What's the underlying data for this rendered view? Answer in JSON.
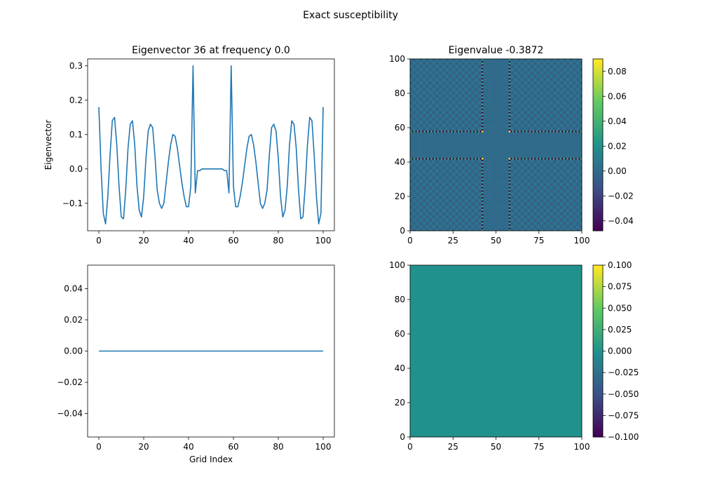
{
  "figure": {
    "suptitle": "Exact susceptibility"
  },
  "colors": {
    "line": "#1f77b4"
  },
  "chart_data": [
    {
      "type": "line",
      "title": "Eigenvector 36 at frequency 0.0",
      "xlabel": "",
      "ylabel": "Eigenvector",
      "xlim": [
        -5,
        105
      ],
      "ylim": [
        -0.18,
        0.32
      ],
      "xticks": [
        0,
        20,
        40,
        60,
        80,
        100
      ],
      "xtick_labels": [
        "0",
        "20",
        "40",
        "60",
        "80",
        "100"
      ],
      "yticks": [
        -0.1,
        0.0,
        0.1,
        0.2,
        0.3
      ],
      "ytick_labels": [
        "−0.1",
        "0.0",
        "0.1",
        "0.2",
        "0.3"
      ],
      "series": [
        {
          "x": [
            0,
            1,
            2,
            3,
            4,
            5,
            6,
            7,
            8,
            9,
            10,
            11,
            12,
            13,
            14,
            15,
            16,
            17,
            18,
            19,
            20,
            21,
            22,
            23,
            24,
            25,
            26,
            27,
            28,
            29,
            30,
            31,
            32,
            33,
            34,
            35,
            36,
            37,
            38,
            39,
            40,
            41,
            42,
            43,
            44,
            45,
            46,
            47,
            48,
            49,
            50,
            51,
            52,
            53,
            54,
            55,
            56,
            57,
            58,
            59,
            60,
            61,
            62,
            63,
            64,
            65,
            66,
            67,
            68,
            69,
            70,
            71,
            72,
            73,
            74,
            75,
            76,
            77,
            78,
            79,
            80,
            81,
            82,
            83,
            84,
            85,
            86,
            87,
            88,
            89,
            90,
            91,
            92,
            93,
            94,
            95,
            96,
            97,
            98,
            99,
            100
          ],
          "y": [
            0.18,
            0.0,
            -0.13,
            -0.16,
            -0.08,
            0.04,
            0.14,
            0.15,
            0.07,
            -0.05,
            -0.14,
            -0.145,
            -0.06,
            0.06,
            0.13,
            0.14,
            0.07,
            -0.05,
            -0.12,
            -0.14,
            -0.08,
            0.03,
            0.11,
            0.13,
            0.12,
            0.04,
            -0.06,
            -0.1,
            -0.115,
            -0.1,
            -0.04,
            0.02,
            0.07,
            0.1,
            0.095,
            0.06,
            0.01,
            -0.04,
            -0.08,
            -0.11,
            -0.11,
            -0.05,
            0.3,
            -0.07,
            -0.005,
            -0.005,
            0.0,
            0.0,
            0.0,
            0.0,
            0.0,
            0.0,
            0.0,
            0.0,
            0.0,
            0.0,
            -0.005,
            -0.005,
            -0.07,
            0.3,
            -0.05,
            -0.11,
            -0.11,
            -0.08,
            -0.04,
            0.01,
            0.06,
            0.095,
            0.1,
            0.07,
            0.02,
            -0.04,
            -0.1,
            -0.115,
            -0.1,
            -0.06,
            0.04,
            0.12,
            0.13,
            0.11,
            0.03,
            -0.08,
            -0.14,
            -0.12,
            -0.05,
            0.07,
            0.14,
            0.13,
            0.06,
            -0.06,
            -0.145,
            -0.14,
            -0.05,
            0.07,
            0.15,
            0.14,
            0.04,
            -0.08,
            -0.16,
            -0.13,
            0.18
          ]
        }
      ]
    },
    {
      "type": "heatmap",
      "title": "Eigenvalue -0.3872",
      "xlim": [
        0,
        100
      ],
      "ylim": [
        0,
        100
      ],
      "xticks": [
        0,
        25,
        50,
        75,
        100
      ],
      "xtick_labels": [
        "0",
        "25",
        "50",
        "75",
        "100"
      ],
      "yticks": [
        0,
        20,
        40,
        60,
        80,
        100
      ],
      "ytick_labels": [
        "0",
        "20",
        "40",
        "60",
        "80",
        "100"
      ],
      "colorbar": {
        "range": [
          -0.048,
          0.09
        ],
        "ticks": [
          -0.04,
          -0.02,
          0.0,
          0.02,
          0.04,
          0.06,
          0.08
        ],
        "tick_labels": [
          "−0.04",
          "−0.02",
          "0.00",
          "0.02",
          "0.04",
          "0.06",
          "0.08"
        ],
        "colormap": "viridis"
      },
      "description_values": {
        "grid_size": 101,
        "zero_band_indices": [
          42,
          58
        ],
        "background_value": 0.0
      }
    },
    {
      "type": "line",
      "title": "",
      "xlabel": "Grid Index",
      "ylabel": "",
      "xlim": [
        -5,
        105
      ],
      "ylim": [
        -0.055,
        0.055
      ],
      "xticks": [
        0,
        20,
        40,
        60,
        80,
        100
      ],
      "xtick_labels": [
        "0",
        "20",
        "40",
        "60",
        "80",
        "100"
      ],
      "yticks": [
        -0.04,
        -0.02,
        0.0,
        0.02,
        0.04
      ],
      "ytick_labels": [
        "−0.04",
        "−0.02",
        "0.00",
        "0.02",
        "0.04"
      ],
      "series": [
        {
          "x": [
            0,
            100
          ],
          "y": [
            0.0,
            0.0
          ]
        }
      ]
    },
    {
      "type": "heatmap",
      "title": "",
      "xlim": [
        0,
        100
      ],
      "ylim": [
        0,
        100
      ],
      "xticks": [
        0,
        25,
        50,
        75,
        100
      ],
      "xtick_labels": [
        "0",
        "25",
        "50",
        "75",
        "100"
      ],
      "yticks": [
        0,
        20,
        40,
        60,
        80,
        100
      ],
      "ytick_labels": [
        "0",
        "20",
        "40",
        "60",
        "80",
        "100"
      ],
      "colorbar": {
        "range": [
          -0.1,
          0.1
        ],
        "ticks": [
          -0.1,
          -0.075,
          -0.05,
          -0.025,
          0.0,
          0.025,
          0.05,
          0.075,
          0.1
        ],
        "tick_labels": [
          "−0.100",
          "−0.075",
          "−0.050",
          "−0.025",
          "0.000",
          "0.025",
          "0.050",
          "0.075",
          "0.100"
        ],
        "colormap": "viridis"
      },
      "uniform_value": 0.0
    }
  ]
}
